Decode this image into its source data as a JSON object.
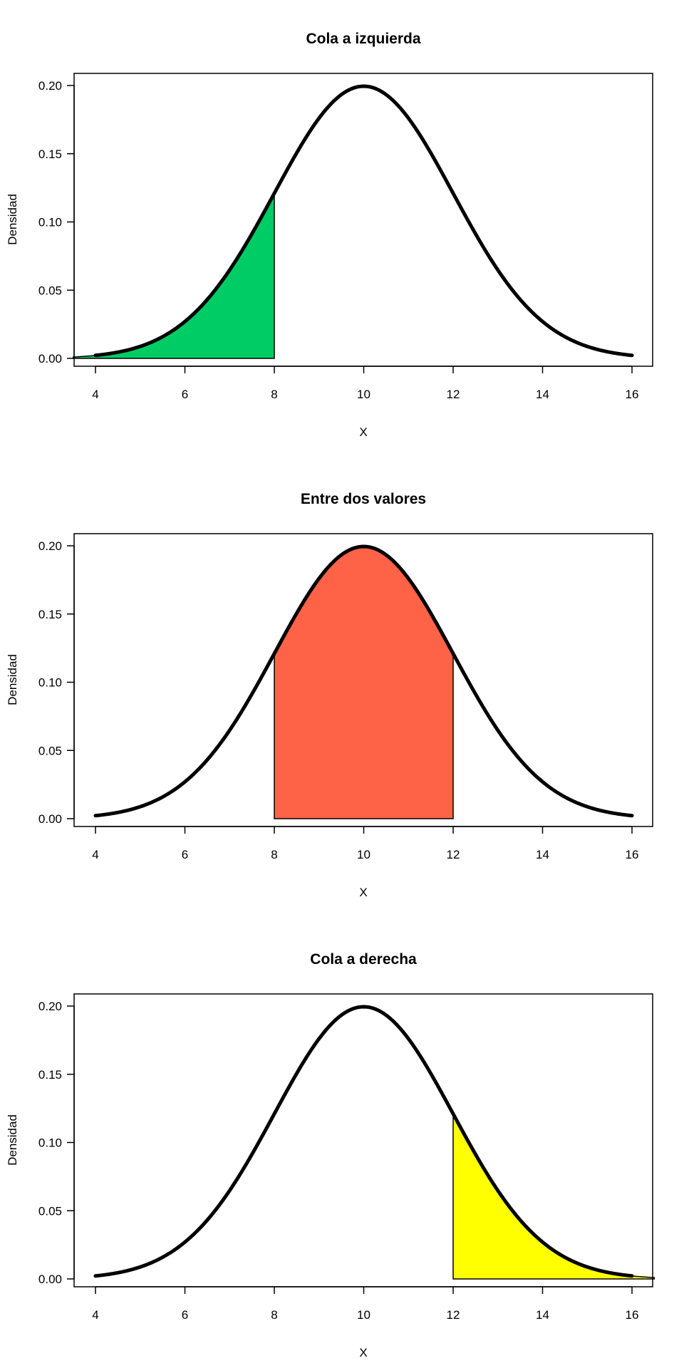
{
  "chart_data": [
    {
      "type": "area",
      "title": "Cola a izquierda",
      "xlabel": "X",
      "ylabel": "Densidad",
      "xlim": [
        3.5,
        16.5
      ],
      "ylim": [
        0,
        0.2
      ],
      "x_ticks": [
        4,
        6,
        8,
        10,
        12,
        14,
        16
      ],
      "y_ticks": [
        0.0,
        0.05,
        0.1,
        0.15,
        0.2
      ],
      "y_tick_labels": [
        "0.00",
        "0.05",
        "0.10",
        "0.15",
        "0.20"
      ],
      "curve": {
        "distribution": "normal",
        "mean": 10,
        "sd": 2,
        "from": 4,
        "to": 16
      },
      "shaded_region": {
        "from": 3.5,
        "to": 8,
        "color": "#00CC66"
      },
      "grid": false
    },
    {
      "type": "area",
      "title": "Entre dos valores",
      "xlabel": "X",
      "ylabel": "Densidad",
      "xlim": [
        3.5,
        16.5
      ],
      "ylim": [
        0,
        0.2
      ],
      "x_ticks": [
        4,
        6,
        8,
        10,
        12,
        14,
        16
      ],
      "y_ticks": [
        0.0,
        0.05,
        0.1,
        0.15,
        0.2
      ],
      "y_tick_labels": [
        "0.00",
        "0.05",
        "0.10",
        "0.15",
        "0.20"
      ],
      "curve": {
        "distribution": "normal",
        "mean": 10,
        "sd": 2,
        "from": 4,
        "to": 16
      },
      "shaded_region": {
        "from": 8,
        "to": 12,
        "color": "#FF6347"
      },
      "grid": false
    },
    {
      "type": "area",
      "title": "Cola a derecha",
      "xlabel": "X",
      "ylabel": "Densidad",
      "xlim": [
        3.5,
        16.5
      ],
      "ylim": [
        0,
        0.2
      ],
      "x_ticks": [
        4,
        6,
        8,
        10,
        12,
        14,
        16
      ],
      "y_ticks": [
        0.0,
        0.05,
        0.1,
        0.15,
        0.2
      ],
      "y_tick_labels": [
        "0.00",
        "0.05",
        "0.10",
        "0.15",
        "0.20"
      ],
      "curve": {
        "distribution": "normal",
        "mean": 10,
        "sd": 2,
        "from": 4,
        "to": 16
      },
      "shaded_region": {
        "from": 12,
        "to": 16.5,
        "color": "#FFFF00"
      },
      "grid": false
    }
  ]
}
